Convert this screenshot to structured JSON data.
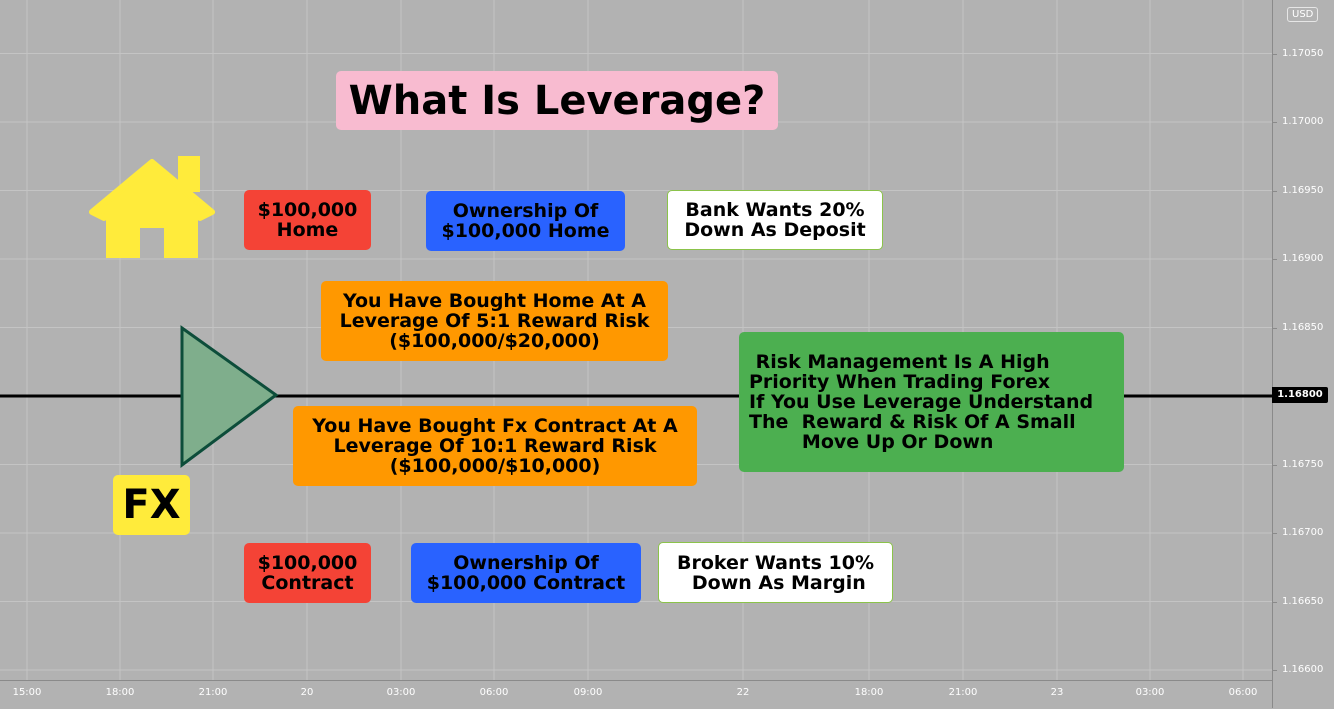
{
  "chart_data": {
    "type": "line",
    "title": "What Is Leverage?",
    "currency": "USD",
    "x_ticks": [
      "15:00",
      "18:00",
      "21:00",
      "20",
      "03:00",
      "06:00",
      "09:00",
      "22",
      "18:00",
      "21:00",
      "23",
      "03:00",
      "06:00"
    ],
    "y_ticks": [
      "1.17050",
      "1.17000",
      "1.16950",
      "1.16900",
      "1.16850",
      "1.16750",
      "1.16700",
      "1.16650",
      "1.16600"
    ],
    "ylim": [
      1.1659,
      1.171
    ],
    "horizontal_line": {
      "value": 1.168,
      "label": "1.16800",
      "color": "#000000"
    },
    "grid": true
  },
  "labels": {
    "title": "What Is Leverage?",
    "home_price": [
      "$100,000",
      "Home"
    ],
    "home_ownership": [
      "Ownership Of",
      "$100,000 Home"
    ],
    "bank": [
      "Bank Wants 20%",
      "Down As Deposit"
    ],
    "home_leverage": [
      "You Have Bought Home At A",
      "Leverage Of 5:1 Reward Risk",
      "($100,000/$20,000)"
    ],
    "fx_leverage": [
      "You Have Bought Fx Contract At A",
      "Leverage Of 10:1 Reward Risk",
      "($100,000/$10,000)"
    ],
    "risk": [
      " Risk Management Is A High",
      "Priority When Trading Forex",
      "",
      "If You Use Leverage Understand",
      "The  Reward & Risk Of A Small",
      "        Move Up Or Down"
    ],
    "fx": "FX",
    "contract_price": [
      "$100,000",
      "Contract"
    ],
    "contract_ownership": [
      "Ownership Of",
      "$100,000 Contract"
    ],
    "broker": [
      "Broker Wants 10%",
      " Down As Margin"
    ]
  },
  "colors": {
    "background": "#b2b2b2",
    "house": "#ffeb3b",
    "triangle_fill": "#7fae8c",
    "triangle_stroke": "#0d4d3a"
  },
  "icons": {
    "house": "house-icon",
    "triangle": "triangle-shape"
  }
}
